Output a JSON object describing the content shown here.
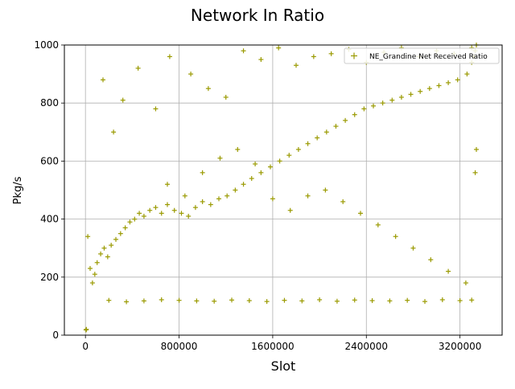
{
  "chart_data": {
    "type": "scatter",
    "title": "Network In Ratio",
    "xlabel": "Slot",
    "ylabel": "Pkg/s",
    "xlim": [
      -180000,
      3560000
    ],
    "ylim": [
      0,
      1000
    ],
    "xticks": [
      0,
      800000,
      1600000,
      2400000,
      3200000
    ],
    "xtick_labels": [
      "0",
      "800000",
      "1600000",
      "2400000",
      "3200000"
    ],
    "yticks": [
      0,
      200,
      400,
      600,
      800,
      1000
    ],
    "ytick_labels": [
      "0",
      "200",
      "400",
      "600",
      "800",
      "1000"
    ],
    "grid": true,
    "legend_position": "top-right",
    "marker": "+",
    "series": [
      {
        "name": "NE_Grandine Net Received Ratio",
        "color": "#9a9a00",
        "x": [
          5000,
          8000,
          20000,
          40000,
          60000,
          80000,
          100000,
          130000,
          160000,
          190000,
          220000,
          260000,
          300000,
          340000,
          380000,
          420000,
          460000,
          500000,
          550000,
          600000,
          650000,
          700000,
          760000,
          820000,
          880000,
          940000,
          1000000,
          1070000,
          1140000,
          1210000,
          1280000,
          1350000,
          1420000,
          1500000,
          1580000,
          1660000,
          1740000,
          1820000,
          1900000,
          1980000,
          2060000,
          2140000,
          2220000,
          2300000,
          2380000,
          2460000,
          2540000,
          2620000,
          2700000,
          2780000,
          2860000,
          2940000,
          3020000,
          3100000,
          3180000,
          3260000,
          3300000,
          3320000,
          3330000,
          3340000,
          200000,
          350000,
          500000,
          650000,
          800000,
          950000,
          1100000,
          1250000,
          1400000,
          1550000,
          1700000,
          1850000,
          2000000,
          2150000,
          2300000,
          2450000,
          2600000,
          2750000,
          2900000,
          3050000,
          3200000,
          3300000,
          150000,
          240000,
          320000,
          450000,
          600000,
          720000,
          900000,
          1050000,
          1200000,
          1350000,
          1500000,
          1650000,
          1800000,
          1950000,
          2100000,
          2250000,
          2400000,
          2550000,
          2700000,
          2850000,
          3000000,
          3150000,
          3300000,
          700000,
          850000,
          1000000,
          1150000,
          1300000,
          1450000,
          1600000,
          1750000,
          1900000,
          2050000,
          2200000,
          2350000,
          2500000,
          2650000,
          2800000,
          2950000,
          3100000,
          3250000,
          3330000,
          3340000
        ],
        "y": [
          18,
          20,
          340,
          230,
          180,
          210,
          250,
          280,
          300,
          270,
          310,
          330,
          350,
          370,
          390,
          400,
          420,
          410,
          430,
          440,
          420,
          450,
          430,
          420,
          410,
          440,
          460,
          450,
          470,
          480,
          500,
          520,
          540,
          560,
          580,
          600,
          620,
          640,
          660,
          680,
          700,
          720,
          740,
          760,
          780,
          790,
          800,
          810,
          820,
          830,
          840,
          850,
          860,
          870,
          880,
          900,
          940,
          960,
          980,
          1000,
          120,
          115,
          118,
          122,
          120,
          118,
          117,
          121,
          119,
          116,
          120,
          118,
          122,
          117,
          121,
          119,
          118,
          120,
          116,
          122,
          119,
          121,
          880,
          700,
          810,
          920,
          780,
          960,
          900,
          850,
          820,
          980,
          950,
          990,
          930,
          960,
          970,
          985,
          940,
          975,
          990,
          960,
          980,
          970,
          990,
          520,
          480,
          560,
          610,
          640,
          590,
          470,
          430,
          480,
          500,
          460,
          420,
          380,
          340,
          300,
          260,
          220,
          180,
          560,
          640
        ]
      }
    ]
  }
}
